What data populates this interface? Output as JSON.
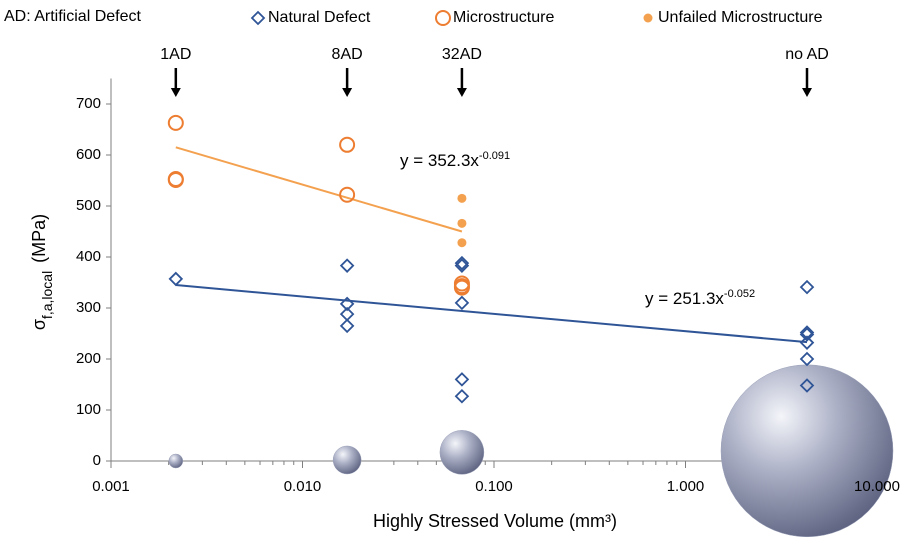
{
  "chart_data": {
    "type": "scatter",
    "note": "AD: Artificial Defect",
    "xlabel": "Highly Stressed Volume (mm³)",
    "ylabel": "σ",
    "ylabel_sub": "f,a,local",
    "ylabel_unit": "(MPa)",
    "xscale": "log",
    "xlim": [
      0.001,
      10
    ],
    "ylim": [
      0,
      750
    ],
    "xticks": [
      {
        "value": 0.001,
        "label": "0.001"
      },
      {
        "value": 0.01,
        "label": "0.010"
      },
      {
        "value": 0.1,
        "label": "0.100"
      },
      {
        "value": 1,
        "label": "1.000"
      },
      {
        "value": 10,
        "label": "10.000"
      }
    ],
    "yticks": [
      0,
      100,
      200,
      300,
      400,
      500,
      600,
      700
    ],
    "legend": "top",
    "series": [
      {
        "name": "Natural Defect",
        "marker": "diamond",
        "color": "#2f5597",
        "x": [
          0.00218,
          0.0171,
          0.0171,
          0.0171,
          0.0171,
          0.068,
          0.068,
          0.068,
          0.068,
          0.068,
          4.31,
          4.31,
          4.31,
          4.31,
          4.31,
          4.31
        ],
        "values": [
          357,
          383,
          308,
          288,
          265,
          388,
          383,
          310,
          160,
          127,
          341,
          252,
          248,
          232,
          200,
          148
        ]
      },
      {
        "name": "Microstructure",
        "marker": "circle-open",
        "color": "#ed7d31",
        "x": [
          0.00218,
          0.00218,
          0.00218,
          0.0171,
          0.0171,
          0.068,
          0.068,
          0.068
        ],
        "values": [
          663,
          553,
          551,
          620,
          522,
          348,
          343,
          340
        ]
      },
      {
        "name": "Unfailed Microstructure",
        "marker": "circle-filled",
        "color": "#f4a14f",
        "x": [
          0.068,
          0.068,
          0.068
        ],
        "values": [
          515,
          466,
          428
        ]
      }
    ],
    "bubbles": {
      "color": "#9aa0b8",
      "x": [
        0.00218,
        0.0171,
        0.068,
        4.31
      ],
      "values": [
        0,
        2,
        17,
        20
      ],
      "sizes": [
        7,
        14,
        22,
        86
      ]
    },
    "trendlines": [
      {
        "color": "#f4a14f",
        "x": [
          0.00218,
          0.068
        ],
        "values": [
          615,
          450
        ],
        "equation": "y = 352.3x",
        "exponent": "-0.091"
      },
      {
        "color": "#2f5597",
        "x": [
          0.00218,
          4.31
        ],
        "values": [
          345,
          233
        ],
        "equation": "y = 251.3x",
        "exponent": "-0.052"
      }
    ],
    "annotations": [
      {
        "text": "1AD",
        "x": 0.00218
      },
      {
        "text": "8AD",
        "x": 0.0171
      },
      {
        "text": "32AD",
        "x": 0.068
      },
      {
        "text": "no AD",
        "x": 4.31
      }
    ]
  }
}
